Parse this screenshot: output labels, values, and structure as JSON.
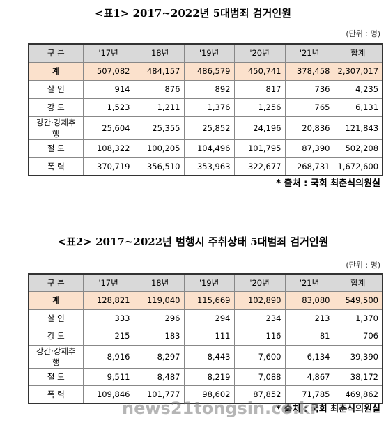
{
  "tables": [
    {
      "title": "<표1> 2017~2022년 5대범죄 검거인원",
      "unit": "(단위 : 명)",
      "header": [
        "구 분",
        "'17년",
        "'18년",
        "'19년",
        "'20년",
        "'21년",
        "합계"
      ],
      "rows": [
        [
          "계",
          "507,082",
          "484,157",
          "486,579",
          "450,741",
          "378,458",
          "2,307,017"
        ],
        [
          "살 인",
          "914",
          "876",
          "892",
          "817",
          "736",
          "4,235"
        ],
        [
          "강 도",
          "1,523",
          "1,211",
          "1,376",
          "1,256",
          "765",
          "6,131"
        ],
        [
          "강간·강제추행",
          "25,604",
          "25,355",
          "25,852",
          "24,196",
          "20,836",
          "121,843"
        ],
        [
          "절 도",
          "108,322",
          "100,205",
          "104,496",
          "101,795",
          "87,390",
          "502,208"
        ],
        [
          "폭 력",
          "370,719",
          "356,510",
          "353,963",
          "322,677",
          "268,731",
          "1,672,600"
        ]
      ],
      "source": "* 출처 : 국회 최춘식의원실"
    },
    {
      "title": "<표2> 2017~2022년 범행시 주취상태 5대범죄 검거인원",
      "unit": "(단위 : 명)",
      "header": [
        "구 분",
        "'17년",
        "'18년",
        "'19년",
        "'20년",
        "'21년",
        "합계"
      ],
      "rows": [
        [
          "계",
          "128,821",
          "119,040",
          "115,669",
          "102,890",
          "83,080",
          "549,500"
        ],
        [
          "살 인",
          "333",
          "296",
          "294",
          "234",
          "213",
          "1,370"
        ],
        [
          "강 도",
          "215",
          "183",
          "111",
          "116",
          "81",
          "706"
        ],
        [
          "강간·강제추행",
          "8,916",
          "8,297",
          "8,443",
          "7,600",
          "6,134",
          "39,390"
        ],
        [
          "절 도",
          "9,511",
          "8,487",
          "8,219",
          "7,088",
          "4,867",
          "38,172"
        ],
        [
          "폭 력",
          "109,846",
          "101,777",
          "98,602",
          "87,852",
          "71,785",
          "469,862"
        ]
      ],
      "source": "* 출처 : 국회 최춘식의원실"
    }
  ],
  "watermark": "news21tongsin.co.kr"
}
